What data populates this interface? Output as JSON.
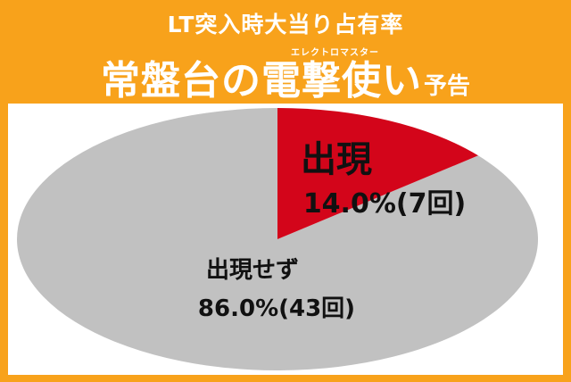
{
  "header": {
    "subtitle": "LT突入時大当り占有率",
    "ruby": "エレクトロマスター",
    "title": "常盤台の電撃使い",
    "suffix": "予告"
  },
  "colors": {
    "frame": "#f8a21b",
    "appear": "#d3051a",
    "not_appear": "#c1c1c1"
  },
  "chart_data": {
    "type": "pie",
    "slices": [
      {
        "label": "出現",
        "value_text": "14.0%(7回)",
        "percent": 14.0,
        "count": 7
      },
      {
        "label": "出現せず",
        "value_text": "86.0%(43回)",
        "percent": 86.0,
        "count": 43
      }
    ]
  }
}
